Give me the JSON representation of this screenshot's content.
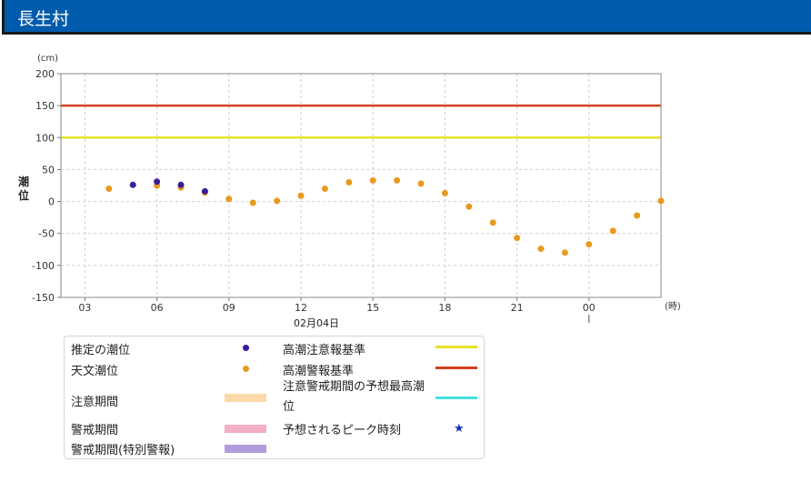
{
  "header": {
    "title": "長生村"
  },
  "colors": {
    "header_bg": "#005bac",
    "estimated": "#3c1b9c",
    "astronomical": "#e89a1e",
    "caution_line": "#e8e22a",
    "warning_line": "#d2401e",
    "caution_period": "#fbd9a8",
    "warning_period": "#f4aec8",
    "special_warning_period": "#b19ddb",
    "forecast_max": "#44e3e0",
    "peak_star": "#1b2fb8"
  },
  "chart_data": {
    "type": "scatter",
    "y_unit": "(cm)",
    "ylabel": "潮位",
    "x_unit": "(時)",
    "date_label": "02月04日",
    "ylim": [
      -150,
      200
    ],
    "y_ticks": [
      "200",
      "150",
      "100",
      "50",
      "0",
      "-50",
      "-100",
      "-150"
    ],
    "x_ticks": [
      "06",
      "09",
      "12",
      "15",
      "18",
      "21",
      "00",
      "03"
    ],
    "x_range_hours": [
      2,
      27
    ],
    "grid": true,
    "thresholds": [
      {
        "name": "高潮注意報基準",
        "value": 100
      },
      {
        "name": "高潮警報基準",
        "value": 150
      }
    ],
    "series": [
      {
        "name": "推定の潮位",
        "x": [
          5,
          6,
          7,
          8
        ],
        "y": [
          26,
          31,
          26,
          16
        ]
      },
      {
        "name": "天文潮位",
        "x": [
          4,
          6,
          7,
          8,
          9,
          10,
          11,
          12,
          13,
          14,
          15,
          16,
          17,
          18,
          19,
          20,
          21,
          22,
          23,
          24,
          25,
          26,
          27
        ],
        "y": [
          20,
          25,
          22,
          14,
          4,
          -2,
          1,
          9,
          20,
          30,
          33,
          33,
          28,
          13,
          -8,
          -33,
          -57,
          -74,
          -80,
          -67,
          -46,
          -22,
          1
        ]
      }
    ]
  },
  "legend": {
    "estimated": "推定の潮位",
    "astronomical": "天文潮位",
    "caution_period": "注意期間",
    "warning_period": "警戒期間",
    "special_warning_period": "警戒期間(特別警報)",
    "caution_line": "高潮注意報基準",
    "warning_line": "高潮警報基準",
    "forecast_max": "注意警戒期間の予想最高潮位",
    "peak_time": "予想されるピーク時刻",
    "peak_icon": "star-icon"
  }
}
